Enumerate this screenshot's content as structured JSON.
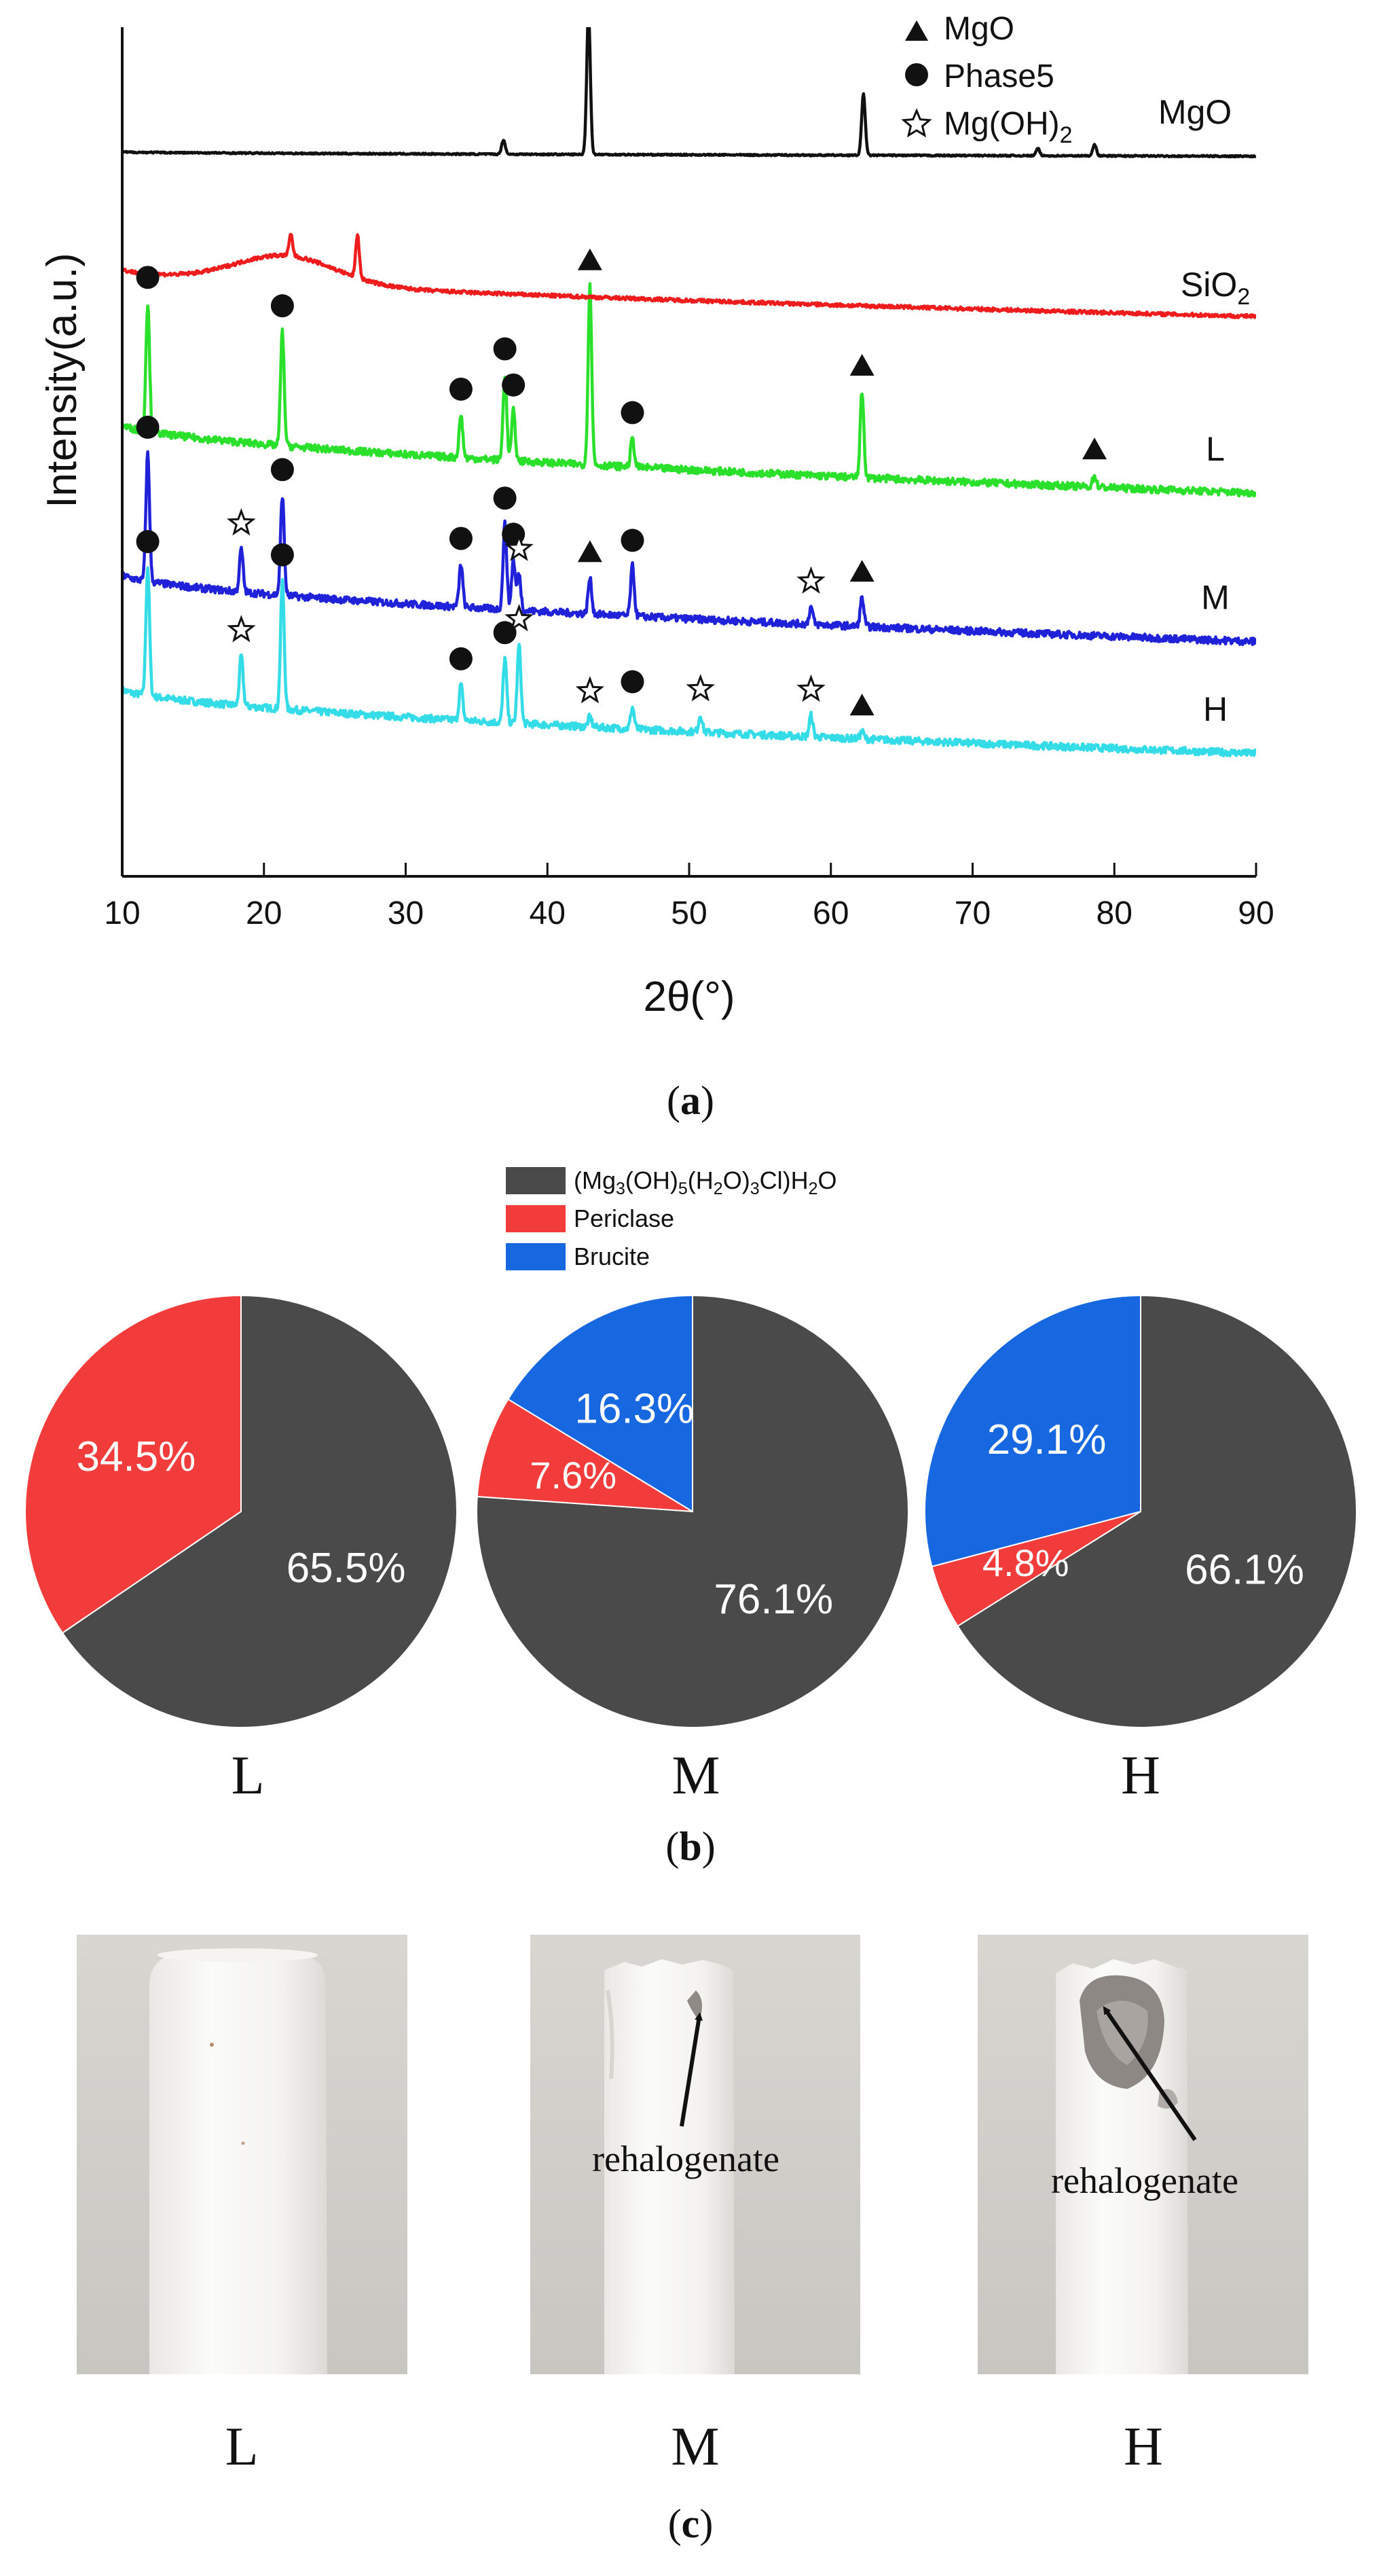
{
  "chart_data": [
    {
      "panel": "a",
      "type": "line",
      "xlabel": "2θ(°)",
      "ylabel": "Intensity(a.u.)",
      "xlim": [
        10,
        90
      ],
      "xticks": [
        10,
        20,
        30,
        40,
        50,
        60,
        70,
        80,
        90
      ],
      "legend": {
        "placement": "top-right",
        "entries": [
          {
            "marker": "triangle",
            "label": "MgO"
          },
          {
            "marker": "circle",
            "label": "Phase5"
          },
          {
            "marker": "star",
            "label": "Mg(OH)",
            "sub": "2"
          }
        ]
      },
      "series": [
        {
          "name": "H",
          "label": "H",
          "color": "#33dce6",
          "baseline": [
            0.55,
            0.1
          ],
          "peaks": [
            [
              11.8,
              0.9,
              "circle"
            ],
            [
              18.4,
              0.35,
              "star"
            ],
            [
              21.3,
              0.9,
              "circle"
            ],
            [
              33.9,
              0.25,
              "circle"
            ],
            [
              37.0,
              0.45,
              "circle"
            ],
            [
              38.0,
              0.55,
              "star"
            ],
            [
              43.0,
              0.07,
              "star"
            ],
            [
              46.0,
              0.15,
              "circle"
            ],
            [
              50.8,
              0.12,
              "star"
            ],
            [
              58.6,
              0.15,
              "star"
            ],
            [
              62.2,
              0.05,
              "triangle"
            ]
          ]
        },
        {
          "name": "M",
          "label": "M",
          "color": "#1f22d8",
          "baseline": [
            0.52,
            0.05
          ],
          "peaks": [
            [
              11.8,
              0.9,
              "circle"
            ],
            [
              18.4,
              0.3,
              "star"
            ],
            [
              21.3,
              0.7,
              "circle"
            ],
            [
              33.9,
              0.3,
              "circle"
            ],
            [
              37.0,
              0.6,
              "circle"
            ],
            [
              37.6,
              0.35,
              "circle"
            ],
            [
              38.0,
              0.25,
              "star"
            ],
            [
              43.0,
              0.25,
              "triangle"
            ],
            [
              46.0,
              0.35,
              "circle"
            ],
            [
              58.6,
              0.12,
              "star"
            ],
            [
              62.2,
              0.2,
              "triangle"
            ]
          ]
        },
        {
          "name": "L",
          "label": "L",
          "color": "#2be02b",
          "baseline": [
            0.5,
            0.02
          ],
          "peaks": [
            [
              11.8,
              0.9,
              "circle"
            ],
            [
              21.3,
              0.8,
              "circle"
            ],
            [
              33.9,
              0.3,
              "circle"
            ],
            [
              37.0,
              0.6,
              "circle"
            ],
            [
              37.6,
              0.35,
              "circle"
            ],
            [
              43.0,
              1.25,
              "triangle"
            ],
            [
              46.0,
              0.2,
              "circle"
            ],
            [
              62.2,
              0.6,
              "triangle"
            ],
            [
              78.6,
              0.08,
              "triangle"
            ]
          ]
        },
        {
          "name": "SiO2",
          "label": "SiO",
          "label_sub": "2",
          "color": "#ee1c1c",
          "hump": true,
          "baseline": [
            0.35,
            0.02
          ],
          "peaks": [
            [
              21.9,
              0.15,
              ""
            ],
            [
              26.6,
              0.3,
              ""
            ]
          ]
        },
        {
          "name": "MgO",
          "label": "MgO",
          "color": "#111111",
          "baseline": [
            0.03,
            0.0
          ],
          "peaks": [
            [
              36.9,
              0.1,
              ""
            ],
            [
              42.9,
              1.0,
              ""
            ],
            [
              62.3,
              0.43,
              ""
            ],
            [
              74.6,
              0.05,
              ""
            ],
            [
              78.6,
              0.08,
              ""
            ]
          ]
        }
      ],
      "caption": "(a)"
    },
    {
      "panel": "b",
      "type": "pie",
      "legend": {
        "placement": "top-center",
        "entries": [
          {
            "label": "(Mg3(OH)5(H2O)3Cl)H2O",
            "color": "#4a4a4a"
          },
          {
            "label": "Periclase",
            "color": "#f23c3c"
          },
          {
            "label": "Brucite",
            "color": "#1768e0"
          }
        ]
      },
      "pies": [
        {
          "name": "L",
          "label": "L",
          "slices": [
            {
              "label": "65.5%",
              "value": 65.5,
              "cat": 0
            },
            {
              "label": "34.5%",
              "value": 34.5,
              "cat": 1
            }
          ]
        },
        {
          "name": "M",
          "label": "M",
          "slices": [
            {
              "label": "76.1%",
              "value": 76.1,
              "cat": 0
            },
            {
              "label": "7.6%",
              "value": 7.6,
              "cat": 1
            },
            {
              "label": "16.3%",
              "value": 16.3,
              "cat": 2
            }
          ]
        },
        {
          "name": "H",
          "label": "H",
          "slices": [
            {
              "label": "66.1%",
              "value": 66.1,
              "cat": 0
            },
            {
              "label": "4.8%",
              "value": 4.8,
              "cat": 1
            },
            {
              "label": "29.1%",
              "value": 29.1,
              "cat": 2
            }
          ]
        }
      ],
      "caption": "(b)"
    }
  ],
  "photos": {
    "caption": "(c)",
    "items": [
      {
        "label": "L",
        "annotation": ""
      },
      {
        "label": "M",
        "annotation": "rehalogenate"
      },
      {
        "label": "H",
        "annotation": "rehalogenate"
      }
    ]
  },
  "legend_formula": {
    "p1": "(Mg",
    "s1": "3",
    "p2": "(OH)",
    "s2": "5",
    "p3": "(H",
    "s3": "2",
    "p4": "O)",
    "s4": "3",
    "p5": "Cl)H",
    "s5": "2",
    "p6": "O"
  }
}
